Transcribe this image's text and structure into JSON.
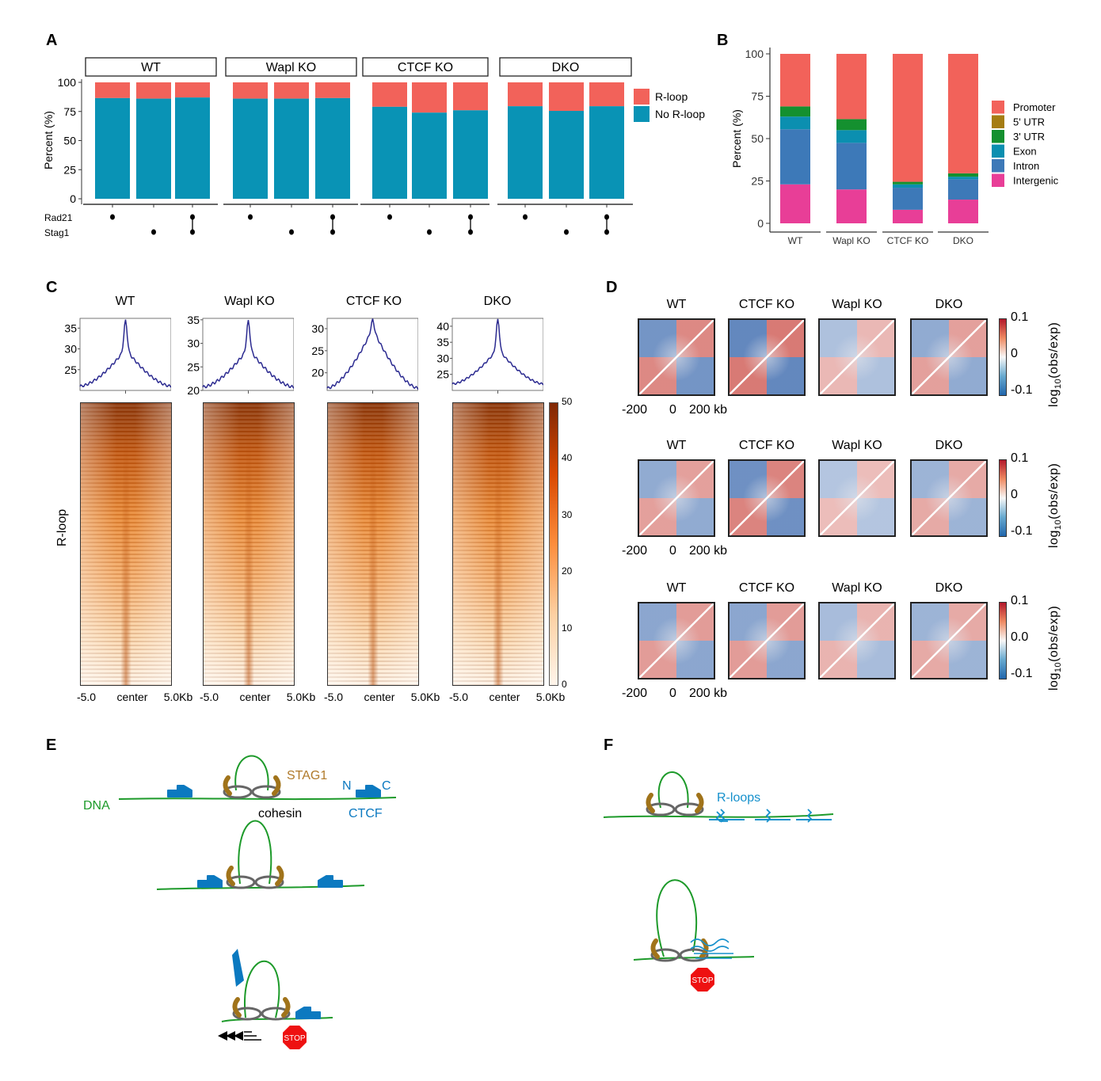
{
  "panels": {
    "A": "A",
    "B": "B",
    "C": "C",
    "D": "D",
    "E": "E",
    "F": "F"
  },
  "colors": {
    "rloop": "#f2625a",
    "no_rloop": "#0993b5",
    "profile": "#2b2a90",
    "hic_red": "#c8423a",
    "hic_blue": "#2e5fa8"
  },
  "chart_data": [
    {
      "panel": "A",
      "type": "bar",
      "stacked": true,
      "ylabel": "Percent (%)",
      "ylim": [
        0,
        100
      ],
      "yticks": [
        "0",
        "25",
        "50",
        "75",
        "100"
      ],
      "facets": [
        "WT",
        "Wapl KO",
        "CTCF KO",
        "DKO"
      ],
      "row_labels": [
        "Rad21",
        "Stag1"
      ],
      "categories_per_facet": [
        "Rad21",
        "Stag1",
        "Rad21+Stag1"
      ],
      "legend": [
        "R-loop",
        "No R-loop"
      ],
      "series": [
        {
          "name": "No R-loop",
          "values": [
            [
              86.5,
              86,
              87
            ],
            [
              86,
              86,
              86.5
            ],
            [
              79,
              74,
              76
            ],
            [
              79.5,
              75.5,
              79.5
            ]
          ]
        },
        {
          "name": "R-loop",
          "values": [
            [
              13.5,
              14,
              13
            ],
            [
              14,
              14,
              13.5
            ],
            [
              21,
              26,
              24
            ],
            [
              20.5,
              24.5,
              20.5
            ]
          ]
        }
      ]
    },
    {
      "panel": "B",
      "type": "bar",
      "stacked": true,
      "ylabel": "Percent (%)",
      "ylim": [
        0,
        100
      ],
      "yticks": [
        "0",
        "25",
        "50",
        "75",
        "100"
      ],
      "categories": [
        "WT",
        "Wapl KO",
        "CTCF KO",
        "DKO"
      ],
      "series": [
        {
          "name": "Intergenic",
          "color": "#e83e97",
          "values": [
            23,
            20,
            8,
            14
          ]
        },
        {
          "name": "Intron",
          "color": "#3d79b8",
          "values": [
            32.5,
            27.5,
            13,
            12
          ]
        },
        {
          "name": "Exon",
          "color": "#0b8fb0",
          "values": [
            7.5,
            7.5,
            2,
            1.5
          ]
        },
        {
          "name": "3' UTR",
          "color": "#14902f",
          "values": [
            6,
            6.5,
            1.5,
            2
          ]
        },
        {
          "name": "5' UTR",
          "color": "#a57d12",
          "values": [
            0,
            0,
            0,
            0
          ]
        },
        {
          "name": "Promoter",
          "color": "#f2625a",
          "values": [
            31,
            38.5,
            75.5,
            70.5
          ]
        }
      ],
      "legend": [
        "Promoter",
        "5' UTR",
        "3' UTR",
        "Exon",
        "Intron",
        "Intergenic"
      ]
    },
    {
      "panel": "C",
      "type": "line",
      "row_label": "R-loop",
      "xticks": [
        "-5.0",
        "center",
        "5.0Kb"
      ],
      "colorbar": {
        "ticks": [
          "0",
          "10",
          "20",
          "30",
          "40",
          "50"
        ],
        "range": [
          0,
          50
        ]
      },
      "profiles": [
        {
          "title": "WT",
          "yticks": [
            "25",
            "30",
            "35"
          ],
          "ylim": [
            20,
            37
          ],
          "edge": 21,
          "peak": 36.8,
          "shoulder": 30
        },
        {
          "title": "Wapl KO",
          "yticks": [
            "20",
            "25",
            "30",
            "35"
          ],
          "ylim": [
            20,
            35
          ],
          "edge": 20.7,
          "peak": 34.7,
          "shoulder": 29
        },
        {
          "title": "CTCF KO",
          "yticks": [
            "20",
            "25",
            "30"
          ],
          "ylim": [
            16,
            32
          ],
          "edge": 16.5,
          "peak": 32,
          "shoulder": 30
        },
        {
          "title": "DKO",
          "yticks": [
            "25",
            "30",
            "35",
            "40"
          ],
          "ylim": [
            20,
            42
          ],
          "edge": 22,
          "peak": 42,
          "shoulder": 33
        }
      ]
    },
    {
      "panel": "D",
      "type": "heatmap",
      "colorbar_label_prefix": "log",
      "colorbar_label_sub": "10",
      "colorbar_label_suffix": "(obs/exp)",
      "xticks": [
        "-200",
        "0",
        "200 kb"
      ],
      "rows": [
        {
          "titles": [
            "WT",
            "CTCF KO",
            "Wapl KO",
            "DKO"
          ],
          "cbar": [
            "0.1",
            "0",
            "-0.1"
          ],
          "strength": [
            0.75,
            0.9,
            0.25,
            0.5
          ]
        },
        {
          "titles": [
            "WT",
            "CTCF KO",
            "Wapl KO",
            "DKO"
          ],
          "cbar": [
            "0.1",
            "0",
            "-0.1"
          ],
          "strength": [
            0.5,
            0.8,
            0.2,
            0.4
          ]
        },
        {
          "titles": [
            "WT",
            "CTCF KO",
            "Wapl KO",
            "DKO"
          ],
          "cbar": [
            "0.1",
            "0.0",
            "-0.1"
          ],
          "strength": [
            0.55,
            0.55,
            0.3,
            0.4
          ]
        }
      ]
    }
  ],
  "diagram_E": {
    "dna": "DNA",
    "stag1": "STAG1",
    "n": "N",
    "c": "C",
    "cohesin": "cohesin",
    "ctcf": "CTCF",
    "stop": "STOP"
  },
  "diagram_F": {
    "rloops": "R-loops",
    "stop": "STOP"
  }
}
